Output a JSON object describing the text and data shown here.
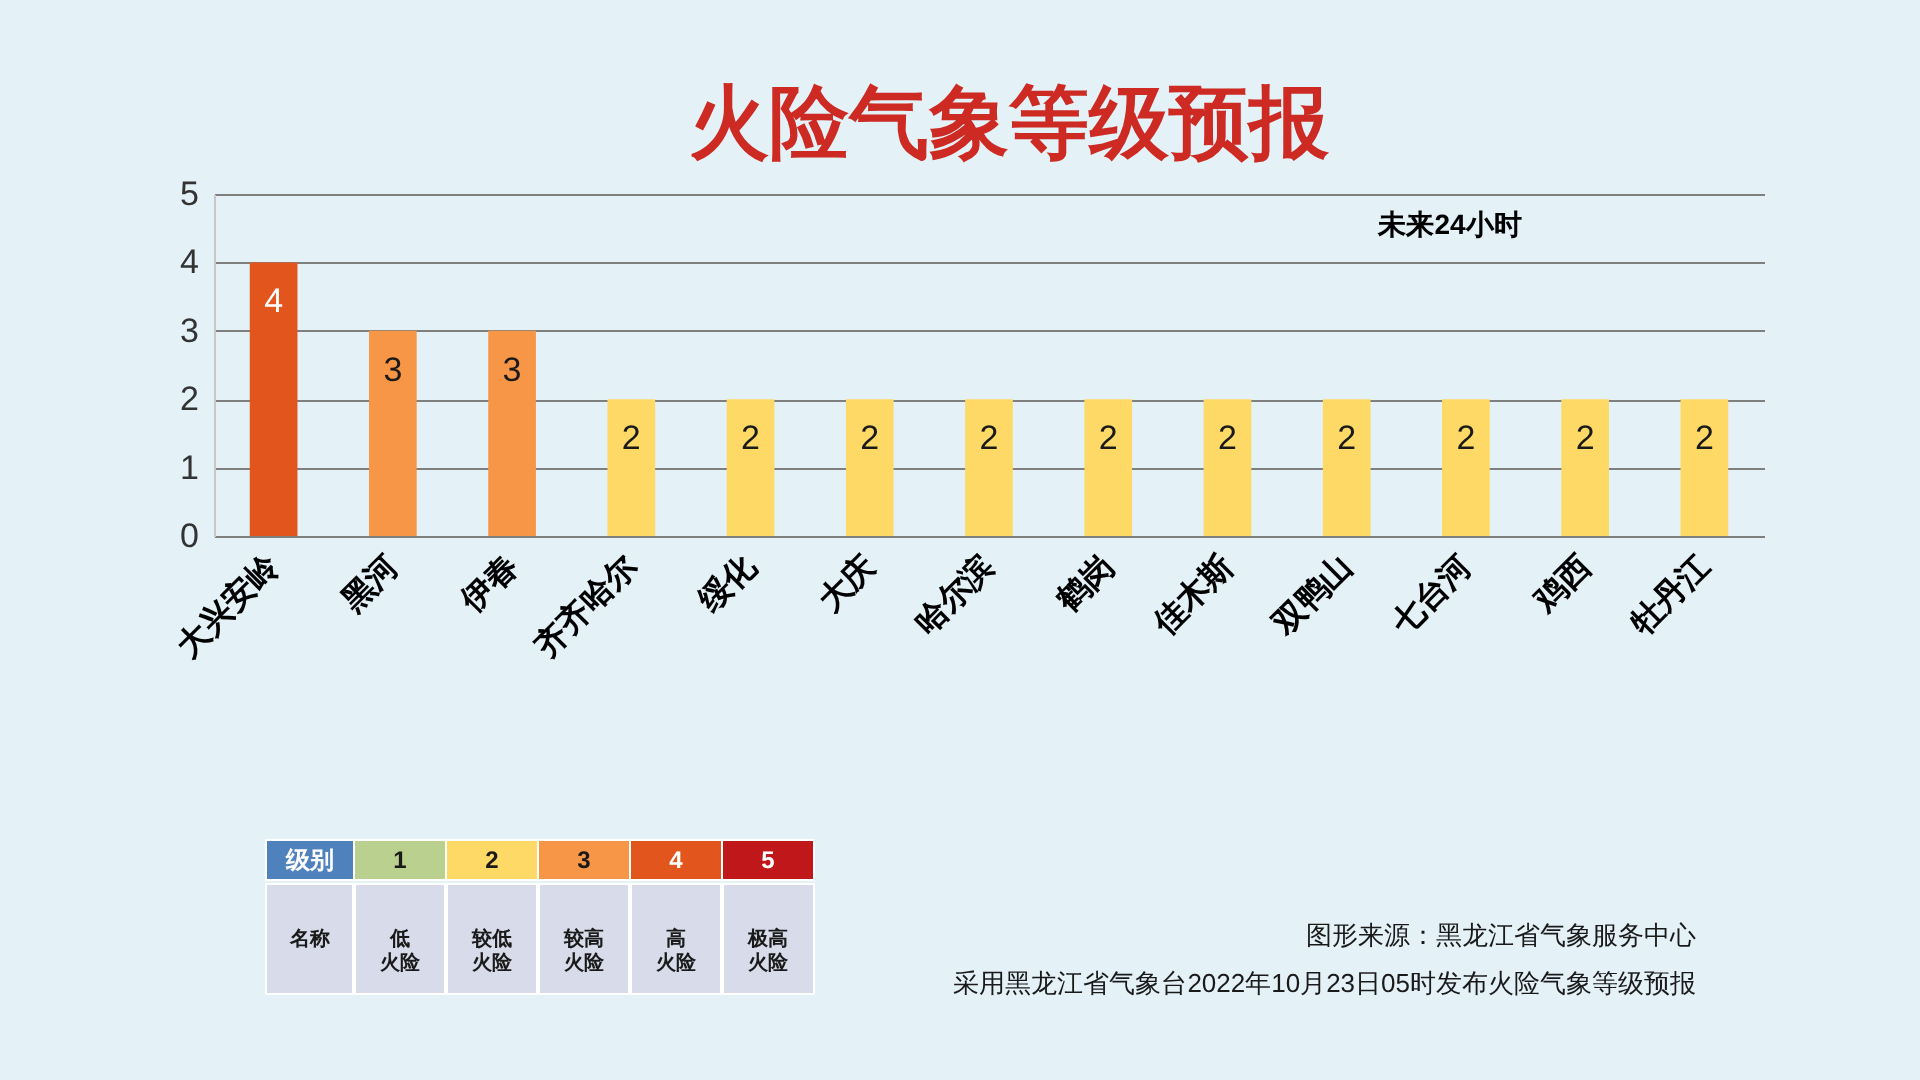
{
  "chart_data": [
    {
      "type": "bar",
      "title": "火险气象等级预报",
      "subtitle": "未来24小时",
      "categories": [
        "大兴安岭",
        "黑河",
        "伊春",
        "齐齐哈尔",
        "绥化",
        "大庆",
        "哈尔滨",
        "鹤岗",
        "佳木斯",
        "双鸭山",
        "七台河",
        "鸡西",
        "牡丹江"
      ],
      "values": [
        4,
        3,
        3,
        2,
        2,
        2,
        2,
        2,
        2,
        2,
        2,
        2,
        2
      ],
      "colors": [
        "#e2561d",
        "#f79646",
        "#f79646",
        "#ffd966",
        "#ffd966",
        "#ffd966",
        "#ffd966",
        "#ffd966",
        "#ffd966",
        "#ffd966",
        "#ffd966",
        "#ffd966",
        "#ffd966"
      ],
      "ylim": [
        0,
        5
      ],
      "yticks": [
        0,
        1,
        2,
        3,
        4,
        5
      ],
      "grid": "y",
      "data_labels": true,
      "annotations": [
        "图形来源：黑龙江省气象服务中心",
        "采用黑龙江省气象台2022年10月23日05时发布火险气象等级预报"
      ]
    },
    {
      "type": "heatmap",
      "xlabel": "名称",
      "y_categories": [
        "级别"
      ],
      "categories": [
        "低火险",
        "较低火险",
        "较高火险",
        "高火险",
        "极高火险"
      ],
      "cells": [
        [
          1,
          2,
          3,
          4,
          5
        ]
      ],
      "colors": [
        "#b9d08f",
        "#ffd966",
        "#f79646",
        "#e2561d",
        "#c0171b"
      ],
      "data_labels": true
    }
  ]
}
